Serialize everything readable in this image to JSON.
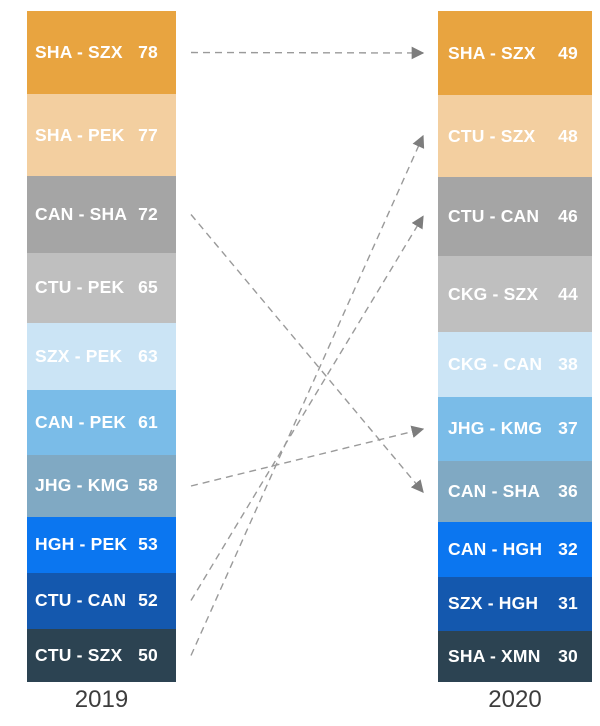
{
  "chart_data": {
    "type": "bar",
    "subtype": "stacked_rank_columns_with_flow_arrows",
    "title": "",
    "xlabel": "",
    "ylabel": "",
    "grid": false,
    "legend_position": "none",
    "columns": [
      {
        "axis_label": "2019",
        "segments": [
          {
            "label": "SHA - SZX",
            "value": 78
          },
          {
            "label": "SHA - PEK",
            "value": 77
          },
          {
            "label": "CAN - SHA",
            "value": 72
          },
          {
            "label": "CTU - PEK",
            "value": 65
          },
          {
            "label": "SZX - PEK",
            "value": 63
          },
          {
            "label": "CAN - PEK",
            "value": 61
          },
          {
            "label": "JHG - KMG",
            "value": 58
          },
          {
            "label": "HGH - PEK",
            "value": 53
          },
          {
            "label": "CTU - CAN",
            "value": 52
          },
          {
            "label": "CTU - SZX",
            "value": 50
          }
        ]
      },
      {
        "axis_label": "2020",
        "segments": [
          {
            "label": "SHA - SZX",
            "value": 49
          },
          {
            "label": "CTU - SZX",
            "value": 48
          },
          {
            "label": "CTU - CAN",
            "value": 46
          },
          {
            "label": "CKG - SZX",
            "value": 44
          },
          {
            "label": "CKG - CAN",
            "value": 38
          },
          {
            "label": "JHG - KMG",
            "value": 37
          },
          {
            "label": "CAN - SHA",
            "value": 36
          },
          {
            "label": "CAN - HGH",
            "value": 32
          },
          {
            "label": "SZX - HGH",
            "value": 31
          },
          {
            "label": "SHA - XMN",
            "value": 30
          }
        ]
      }
    ],
    "segment_colors_by_rank": [
      "#E8A440",
      "#F3CFA0",
      "#A5A5A5",
      "#BFBFBF",
      "#CBE4F5",
      "#7ABCE8",
      "#80A9C3",
      "#0B76F0",
      "#1458AE",
      "#2C4352"
    ],
    "text_color": "#ffffff",
    "arrow_color": "#9a9a9a",
    "arrowhead_color": "#7d7d7d",
    "arrow_connections": [
      {
        "route": "SHA - SZX"
      },
      {
        "route": "CAN - SHA"
      },
      {
        "route": "JHG - KMG"
      },
      {
        "route": "CTU - CAN"
      },
      {
        "route": "CTU - SZX"
      }
    ]
  }
}
